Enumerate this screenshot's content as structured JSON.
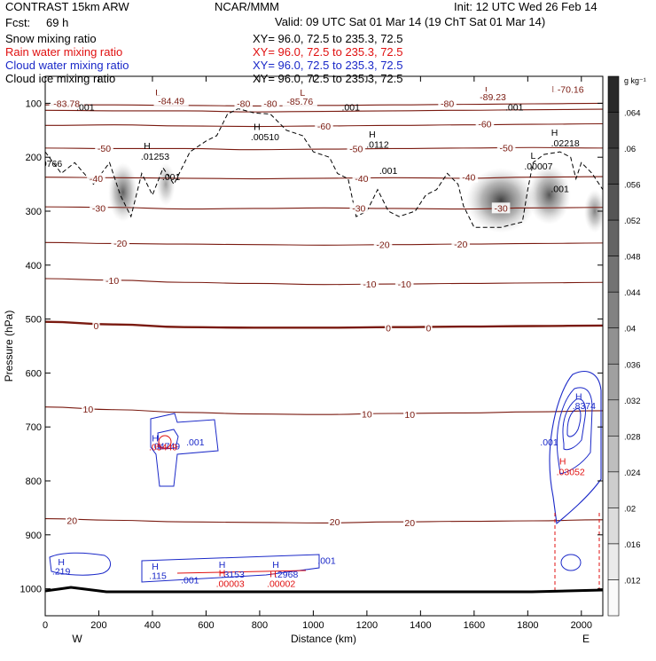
{
  "header": {
    "model": "CONTRAST 15km ARW",
    "center": "NCAR/MMM",
    "init": "Init: 12 UTC Wed 26 Feb 14",
    "fcst_label": "Fcst:",
    "fcst_value": "69 h",
    "valid": "Valid: 09 UTC Sat 01 Mar 14 (19 ChT Sat 01 Mar 14)"
  },
  "fields": [
    {
      "name": "Snow mixing ratio",
      "xy": "XY=  96.0, 72.5 to 235.3, 72.5",
      "color": "#000000"
    },
    {
      "name": "Rain water mixing ratio",
      "xy": "XY=  96.0, 72.5 to 235.3, 72.5",
      "color": "#e01010"
    },
    {
      "name": "Cloud water mixing ratio",
      "xy": "XY=  96.0, 72.5 to 235.3, 72.5",
      "color": "#1a28c8"
    },
    {
      "name": "Cloud ice mixing ratio",
      "xy": "XY=  96.0, 72.5 to 235.3, 72.5",
      "color": "#000000"
    }
  ],
  "colors": {
    "temperature": "#7a1a10",
    "rain": "#e01010",
    "cloud_water": "#1a28c8",
    "ice": "#000000"
  },
  "colorbar": {
    "unit": "g kg⁻¹",
    "labels": [
      ".064",
      ".06",
      ".056",
      ".052",
      ".048",
      ".044",
      ".04",
      ".036",
      ".032",
      ".028",
      ".024",
      ".02",
      ".016",
      ".012"
    ]
  },
  "chart_data": {
    "type": "contour-cross-section",
    "xlabel": "Distance (km)",
    "ylabel": "Pressure (hPa)",
    "xlim": [
      0,
      2080
    ],
    "ylim": [
      1050,
      50
    ],
    "x_ticks": [
      0,
      200,
      400,
      600,
      800,
      1000,
      1200,
      1400,
      1600,
      1800,
      2000
    ],
    "y_ticks": [
      100,
      200,
      300,
      400,
      500,
      600,
      700,
      800,
      900,
      1000
    ],
    "x_end_labels": {
      "left": "W",
      "right": "E"
    },
    "temperature_contours": [
      {
        "t": -80,
        "p": [
          103,
          103,
          104,
          105,
          104,
          103,
          102,
          101,
          100
        ]
      },
      {
        "t": -70,
        "p": [
          113,
          114,
          114,
          116,
          115,
          114,
          113,
          112,
          111
        ]
      },
      {
        "t": -60,
        "p": [
          141,
          140,
          142,
          143,
          142,
          141,
          140,
          139,
          138
        ]
      },
      {
        "t": -50,
        "p": [
          183,
          184,
          184,
          186,
          185,
          184,
          183,
          182,
          183
        ]
      },
      {
        "t": -40,
        "p": [
          237,
          238,
          239,
          240,
          239,
          238,
          239,
          237,
          236
        ]
      },
      {
        "t": -30,
        "p": [
          292,
          293,
          296,
          295,
          294,
          295,
          296,
          294,
          293
        ]
      },
      {
        "t": -20,
        "p": [
          358,
          360,
          361,
          362,
          363,
          362,
          361,
          360,
          359
        ]
      },
      {
        "t": -10,
        "p": [
          425,
          428,
          432,
          434,
          436,
          435,
          434,
          433,
          432
        ]
      },
      {
        "t": 0,
        "p": [
          505,
          510,
          515,
          516,
          516,
          515,
          514,
          513,
          512
        ]
      },
      {
        "t": 10,
        "p": [
          663,
          668,
          673,
          676,
          677,
          675,
          674,
          672,
          670
        ]
      },
      {
        "t": 20,
        "p": [
          870,
          873,
          876,
          877,
          878,
          876,
          875,
          874,
          872
        ]
      }
    ],
    "contour_x": [
      0,
      260,
      520,
      780,
      1040,
      1300,
      1560,
      1820,
      2080
    ],
    "labels": [
      {
        "text": "-80",
        "x": 740,
        "p": 100,
        "color": "temperature"
      },
      {
        "text": "-80",
        "x": 840,
        "p": 100,
        "color": "temperature"
      },
      {
        "text": "-80",
        "x": 1500,
        "p": 100,
        "color": "temperature"
      },
      {
        "text": "-60",
        "x": 1040,
        "p": 142,
        "color": "temperature"
      },
      {
        "text": "-60",
        "x": 1640,
        "p": 138,
        "color": "temperature"
      },
      {
        "text": "-50",
        "x": 220,
        "p": 183,
        "color": "temperature"
      },
      {
        "text": "-50",
        "x": 1160,
        "p": 184,
        "color": "temperature"
      },
      {
        "text": "-50",
        "x": 1720,
        "p": 182,
        "color": "temperature"
      },
      {
        "text": "-40",
        "x": 190,
        "p": 239,
        "color": "temperature"
      },
      {
        "text": "-40",
        "x": 1180,
        "p": 239,
        "color": "temperature"
      },
      {
        "text": "-40",
        "x": 1580,
        "p": 237,
        "color": "temperature"
      },
      {
        "text": "-30",
        "x": 200,
        "p": 294,
        "color": "temperature"
      },
      {
        "text": "-30",
        "x": 1170,
        "p": 294,
        "color": "temperature"
      },
      {
        "text": "-30",
        "x": 1700,
        "p": 294,
        "color": "temperature"
      },
      {
        "text": "-20",
        "x": 280,
        "p": 359,
        "color": "temperature"
      },
      {
        "text": "-20",
        "x": 1260,
        "p": 362,
        "color": "temperature"
      },
      {
        "text": "-20",
        "x": 1550,
        "p": 361,
        "color": "temperature"
      },
      {
        "text": "-10",
        "x": 250,
        "p": 428,
        "color": "temperature"
      },
      {
        "text": "-10",
        "x": 1210,
        "p": 435,
        "color": "temperature"
      },
      {
        "text": "-10",
        "x": 1340,
        "p": 435,
        "color": "temperature"
      },
      {
        "text": "0",
        "x": 190,
        "p": 512,
        "color": "temperature"
      },
      {
        "text": "0",
        "x": 1280,
        "p": 516,
        "color": "temperature"
      },
      {
        "text": "0",
        "x": 1430,
        "p": 516,
        "color": "temperature"
      },
      {
        "text": "10",
        "x": 160,
        "p": 667,
        "color": "temperature"
      },
      {
        "text": "10",
        "x": 1200,
        "p": 676,
        "color": "temperature"
      },
      {
        "text": "10",
        "x": 1360,
        "p": 677,
        "color": "temperature"
      },
      {
        "text": "20",
        "x": 100,
        "p": 873,
        "color": "temperature"
      },
      {
        "text": "20",
        "x": 1080,
        "p": 876,
        "color": "temperature"
      },
      {
        "text": "20",
        "x": 1360,
        "p": 877,
        "color": "temperature"
      },
      {
        "text": "L",
        "x": 420,
        "p": 80,
        "color": "temperature"
      },
      {
        "text": "-83.78",
        "x": 80,
        "p": 100,
        "color": "temperature"
      },
      {
        "text": "-84.49",
        "x": 470,
        "p": 95,
        "color": "temperature"
      },
      {
        "text": "L",
        "x": 960,
        "p": 80,
        "color": "temperature"
      },
      {
        "text": "-85.76",
        "x": 950,
        "p": 96,
        "color": "temperature"
      },
      {
        "text": "L",
        "x": 1650,
        "p": 75,
        "color": "temperature"
      },
      {
        "text": "-89.23",
        "x": 1670,
        "p": 88,
        "color": "temperature"
      },
      {
        "text": "L",
        "x": 1900,
        "p": 73,
        "color": "temperature"
      },
      {
        "text": "-70.16",
        "x": 1960,
        "p": 74,
        "color": "temperature"
      },
      {
        "text": ".001",
        "x": 150,
        "p": 107,
        "color": "ice"
      },
      {
        "text": ".001",
        "x": 1140,
        "p": 107,
        "color": "ice"
      },
      {
        "text": ".001",
        "x": 1750,
        "p": 107,
        "color": "ice"
      },
      {
        "text": "H",
        "x": 790,
        "p": 143,
        "color": "ice"
      },
      {
        "text": ".00510",
        "x": 820,
        "p": 162,
        "color": "ice"
      },
      {
        "text": "H",
        "x": 1220,
        "p": 157,
        "color": "ice"
      },
      {
        "text": ".0112",
        "x": 1240,
        "p": 176,
        "color": "ice"
      },
      {
        "text": "H",
        "x": 380,
        "p": 178,
        "color": "ice"
      },
      {
        "text": ".01253",
        "x": 410,
        "p": 198,
        "color": "ice"
      },
      {
        "text": "H",
        "x": 1900,
        "p": 154,
        "color": "ice"
      },
      {
        "text": ".02218",
        "x": 1940,
        "p": 173,
        "color": "ice"
      },
      {
        "text": ".0766",
        "x": 20,
        "p": 211,
        "color": "ice"
      },
      {
        "text": ".001",
        "x": 470,
        "p": 236,
        "color": "ice"
      },
      {
        "text": ".001",
        "x": 1280,
        "p": 224,
        "color": "ice"
      },
      {
        "text": "L",
        "x": 1820,
        "p": 196,
        "color": "ice"
      },
      {
        "text": ".00007",
        "x": 1840,
        "p": 216,
        "color": "ice"
      },
      {
        "text": ".001",
        "x": 1920,
        "p": 258,
        "color": "ice"
      },
      {
        "text": "H",
        "x": 410,
        "p": 720,
        "color": "cloud_water"
      },
      {
        "text": ".04749",
        "x": 450,
        "p": 735,
        "color": "cloud_water"
      },
      {
        "text": ".05449",
        "x": 440,
        "p": 737,
        "color": "rain"
      },
      {
        "text": ".001",
        "x": 560,
        "p": 728,
        "color": "cloud_water"
      },
      {
        "text": "H",
        "x": 1990,
        "p": 643,
        "color": "cloud_water"
      },
      {
        "text": ".8374",
        "x": 2010,
        "p": 660,
        "color": "cloud_water"
      },
      {
        "text": ".001",
        "x": 1880,
        "p": 728,
        "color": "cloud_water"
      },
      {
        "text": "H",
        "x": 1930,
        "p": 763,
        "color": "rain"
      },
      {
        "text": ".03052",
        "x": 1960,
        "p": 783,
        "color": "rain"
      },
      {
        "text": "H",
        "x": 60,
        "p": 950,
        "color": "cloud_water"
      },
      {
        "text": ".219",
        "x": 60,
        "p": 967,
        "color": "cloud_water"
      },
      {
        "text": "H",
        "x": 410,
        "p": 958,
        "color": "cloud_water"
      },
      {
        "text": ".115",
        "x": 420,
        "p": 975,
        "color": "cloud_water"
      },
      {
        "text": ".001",
        "x": 540,
        "p": 983,
        "color": "cloud_water"
      },
      {
        "text": "H",
        "x": 660,
        "p": 955,
        "color": "cloud_water"
      },
      {
        "text": "H",
        "x": 660,
        "p": 970,
        "color": "rain"
      },
      {
        "text": ".3153",
        "x": 700,
        "p": 973,
        "color": "cloud_water"
      },
      {
        "text": ".00003",
        "x": 690,
        "p": 990,
        "color": "rain"
      },
      {
        "text": "H",
        "x": 860,
        "p": 955,
        "color": "cloud_water"
      },
      {
        "text": "H",
        "x": 850,
        "p": 972,
        "color": "rain"
      },
      {
        "text": ".2968",
        "x": 900,
        "p": 973,
        "color": "cloud_water"
      },
      {
        "text": ".00002",
        "x": 880,
        "p": 990,
        "color": "rain"
      },
      {
        "text": ".001",
        "x": 1050,
        "p": 947,
        "color": "cloud_water"
      }
    ],
    "ice_shading": [
      {
        "x": 290,
        "p": 265,
        "rx": 55,
        "rp": 55,
        "intensity": 0.75
      },
      {
        "x": 450,
        "p": 250,
        "rx": 35,
        "rp": 40,
        "intensity": 0.45
      },
      {
        "x": 1700,
        "p": 280,
        "rx": 130,
        "rp": 60,
        "intensity": 0.9
      },
      {
        "x": 1880,
        "p": 270,
        "rx": 80,
        "rp": 55,
        "intensity": 0.8
      },
      {
        "x": 2050,
        "p": 300,
        "rx": 40,
        "rp": 40,
        "intensity": 0.6
      }
    ],
    "ice_boundary": [
      [
        0,
        190
      ],
      [
        60,
        230
      ],
      [
        110,
        210
      ],
      [
        180,
        250
      ],
      [
        240,
        210
      ],
      [
        280,
        270
      ],
      [
        320,
        310
      ],
      [
        360,
        230
      ],
      [
        400,
        270
      ],
      [
        440,
        220
      ],
      [
        480,
        250
      ],
      [
        540,
        190
      ],
      [
        600,
        170
      ],
      [
        640,
        160
      ],
      [
        680,
        120
      ],
      [
        720,
        110
      ],
      [
        780,
        118
      ],
      [
        840,
        120
      ],
      [
        900,
        150
      ],
      [
        960,
        160
      ],
      [
        1000,
        190
      ],
      [
        1060,
        200
      ],
      [
        1090,
        230
      ],
      [
        1130,
        240
      ],
      [
        1160,
        310
      ],
      [
        1200,
        300
      ],
      [
        1220,
        280
      ],
      [
        1240,
        260
      ],
      [
        1280,
        300
      ],
      [
        1320,
        310
      ],
      [
        1380,
        300
      ],
      [
        1420,
        270
      ],
      [
        1460,
        260
      ],
      [
        1500,
        230
      ],
      [
        1540,
        250
      ],
      [
        1560,
        290
      ],
      [
        1600,
        330
      ],
      [
        1700,
        330
      ],
      [
        1780,
        320
      ],
      [
        1800,
        260
      ],
      [
        1820,
        210
      ],
      [
        1860,
        195
      ],
      [
        1920,
        190
      ],
      [
        1960,
        200
      ],
      [
        1980,
        240
      ],
      [
        2000,
        210
      ],
      [
        2040,
        230
      ],
      [
        2080,
        260
      ]
    ]
  }
}
